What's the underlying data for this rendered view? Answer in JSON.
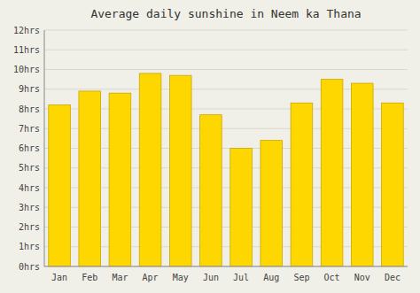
{
  "chart_data": {
    "type": "bar",
    "title": "Average daily sunshine in Neem ka Thana",
    "categories": [
      "Jan",
      "Feb",
      "Mar",
      "Apr",
      "May",
      "Jun",
      "Jul",
      "Aug",
      "Sep",
      "Oct",
      "Nov",
      "Dec"
    ],
    "values": [
      8.2,
      8.9,
      8.8,
      9.8,
      9.7,
      7.7,
      6.0,
      6.4,
      8.3,
      9.5,
      9.3,
      8.3
    ],
    "color": "#FFD700",
    "ylim": [
      0,
      12
    ],
    "yticks": [
      {
        "value": 0,
        "label": "0hrs"
      },
      {
        "value": 1,
        "label": "1hrs"
      },
      {
        "value": 2,
        "label": "2hrs"
      },
      {
        "value": 3,
        "label": "3hrs"
      },
      {
        "value": 4,
        "label": "4hrs"
      },
      {
        "value": 5,
        "label": "5hrs"
      },
      {
        "value": 6,
        "label": "6hrs"
      },
      {
        "value": 7,
        "label": "7hrs"
      },
      {
        "value": 8,
        "label": "8hrs"
      },
      {
        "value": 9,
        "label": "9hrs"
      },
      {
        "value": 10,
        "label": "10hrs"
      },
      {
        "value": 11,
        "label": "11hrs"
      },
      {
        "value": 12,
        "label": "12hrs"
      }
    ],
    "grid": true
  }
}
